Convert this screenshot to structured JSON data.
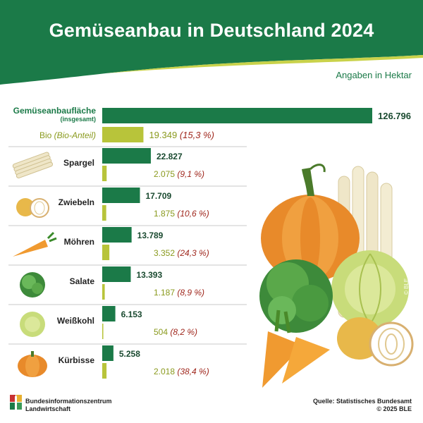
{
  "title": "Gemüseanbau in Deutschland 2024",
  "unit_label": "Angaben in Hektar",
  "source": "Quelle: Statistisches Bundesamt",
  "copyright": "© 2025 BLE",
  "image_credit": "© BLE",
  "logo": {
    "line1": "Bundesinformationszentrum",
    "line2": "Landwirtschaft"
  },
  "colors": {
    "total": "#1b7a48",
    "bio": "#b8c43a",
    "bio_text": "#8a9a1e",
    "share_text": "#a0281e",
    "header": "#1b7a48"
  },
  "chart_data": {
    "type": "bar",
    "orientation": "horizontal",
    "title": "Gemüseanbau in Deutschland 2024",
    "unit": "Angaben in Hektar",
    "xlim": [
      0,
      126796
    ],
    "grid": false,
    "summary": {
      "label": "Gemüseanbaufläche",
      "sublabel": "(insgesamt)",
      "total": 126796,
      "total_label": "126.796",
      "bio_label": "Bio",
      "bio_sublabel": "(Bio-Anteil)",
      "bio": 19349,
      "bio_value_label": "19.349",
      "bio_share_label": "(15,3 %)"
    },
    "categories": [
      {
        "name": "Spargel",
        "icon": "asparagus-icon",
        "total": 22827,
        "total_label": "22.827",
        "bio": 2075,
        "bio_label": "2.075",
        "share": "(9,1 %)"
      },
      {
        "name": "Zwiebeln",
        "icon": "onion-icon",
        "total": 17709,
        "total_label": "17.709",
        "bio": 1875,
        "bio_label": "1.875",
        "share": "(10,6 %)"
      },
      {
        "name": "Möhren",
        "icon": "carrot-icon",
        "total": 13789,
        "total_label": "13.789",
        "bio": 3352,
        "bio_label": "3.352",
        "share": "(24,3 %)"
      },
      {
        "name": "Salate",
        "icon": "lettuce-icon",
        "total": 13393,
        "total_label": "13.393",
        "bio": 1187,
        "bio_label": "1.187",
        "share": "(8,9 %)"
      },
      {
        "name": "Weißkohl",
        "icon": "cabbage-icon",
        "total": 6153,
        "total_label": "6.153",
        "bio": 504,
        "bio_label": "504",
        "share": "(8,2 %)"
      },
      {
        "name": "Kürbisse",
        "icon": "pumpkin-icon",
        "total": 5258,
        "total_label": "5.258",
        "bio": 2018,
        "bio_label": "2.018",
        "share": "(38,4 %)"
      }
    ]
  }
}
